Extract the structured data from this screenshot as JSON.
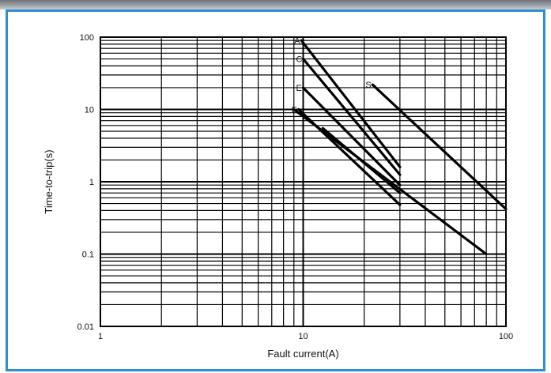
{
  "chart_data": {
    "type": "line",
    "x_scale": "log",
    "y_scale": "log",
    "xlim": [
      1,
      100
    ],
    "ylim": [
      0.01,
      100
    ],
    "xlabel": "Fault current(A)",
    "ylabel": "Time-to-trip(s)",
    "x_ticks": [
      "1",
      "10",
      "100"
    ],
    "y_ticks": [
      "100",
      "10",
      "1",
      "0.1",
      "0.01"
    ],
    "x_tick_values": [
      1,
      10,
      100
    ],
    "y_tick_values": [
      100,
      10,
      1,
      0.1,
      0.01
    ],
    "grid": true,
    "line_color": "#000000",
    "series": [
      {
        "name": "A",
        "x": [
          9.8,
          30
        ],
        "y": [
          90,
          1.6
        ]
      },
      {
        "name": "C",
        "x": [
          10,
          30
        ],
        "y": [
          50,
          1.25
        ]
      },
      {
        "name": "E",
        "x": [
          10,
          30
        ],
        "y": [
          20,
          0.9
        ]
      },
      {
        "name": "F",
        "x": [
          9.5,
          30
        ],
        "y": [
          10,
          0.48
        ]
      },
      {
        "name": "S",
        "x": [
          22,
          100
        ],
        "y": [
          22,
          0.42
        ]
      },
      {
        "name": "",
        "x": [
          9,
          80
        ],
        "y": [
          10,
          0.1
        ]
      },
      {
        "name": "",
        "x": [
          12.5,
          30
        ],
        "y": [
          5.5,
          0.7
        ]
      }
    ]
  },
  "frame": {
    "accent_color": "#2f8fd0"
  }
}
